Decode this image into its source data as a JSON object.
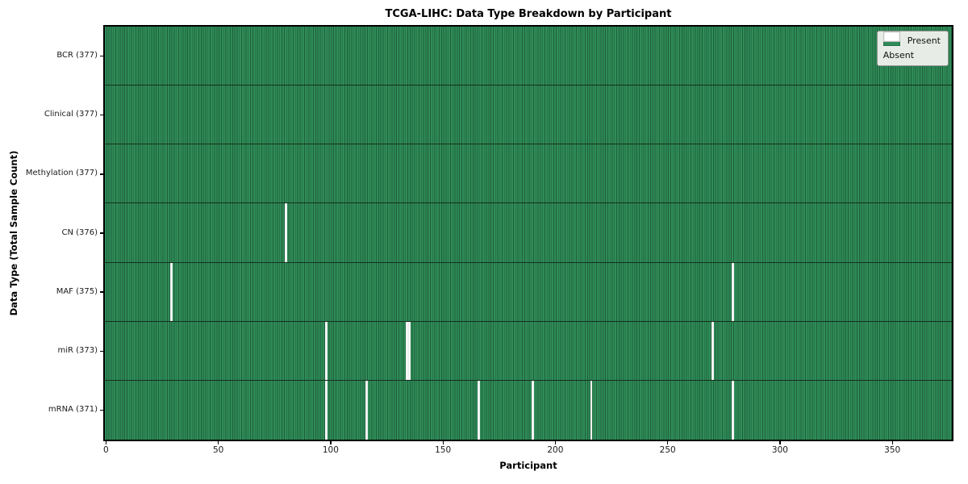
{
  "chart_data": {
    "type": "heatmap",
    "title": "TCGA-LIHC: Data Type Breakdown by Participant",
    "xlabel": "Participant",
    "ylabel": "Data Type (Total Sample Count)",
    "n_participants": 377,
    "x_range": [
      -0.5,
      376.5
    ],
    "x_ticks": [
      0,
      50,
      100,
      150,
      200,
      250,
      300,
      350
    ],
    "grid": "off",
    "legend_position": "upper right",
    "legend": [
      {
        "label": "Present",
        "color": "#2e8b57"
      },
      {
        "label": "Absent",
        "color": "#ffffff"
      }
    ],
    "rows": [
      {
        "label": "BCR (377)",
        "total": 377,
        "absent_participants": []
      },
      {
        "label": "Clinical (377)",
        "total": 377,
        "absent_participants": []
      },
      {
        "label": "Methylation (377)",
        "total": 377,
        "absent_participants": []
      },
      {
        "label": "CN (376)",
        "total": 376,
        "absent_participants": [
          80
        ]
      },
      {
        "label": "MAF (375)",
        "total": 375,
        "absent_participants": [
          29,
          279
        ]
      },
      {
        "label": "miR (373)",
        "total": 373,
        "absent_participants": [
          98,
          134,
          135,
          270
        ]
      },
      {
        "label": "mRNA (371)",
        "total": 371,
        "absent_participants": [
          98,
          116,
          166,
          190,
          216,
          279
        ]
      }
    ],
    "colors": {
      "present": "#2e8b57",
      "present_stripe": "#1f5f3b",
      "absent": "#ffffff",
      "row_divider": "#15301e",
      "spine": "#000000"
    }
  }
}
